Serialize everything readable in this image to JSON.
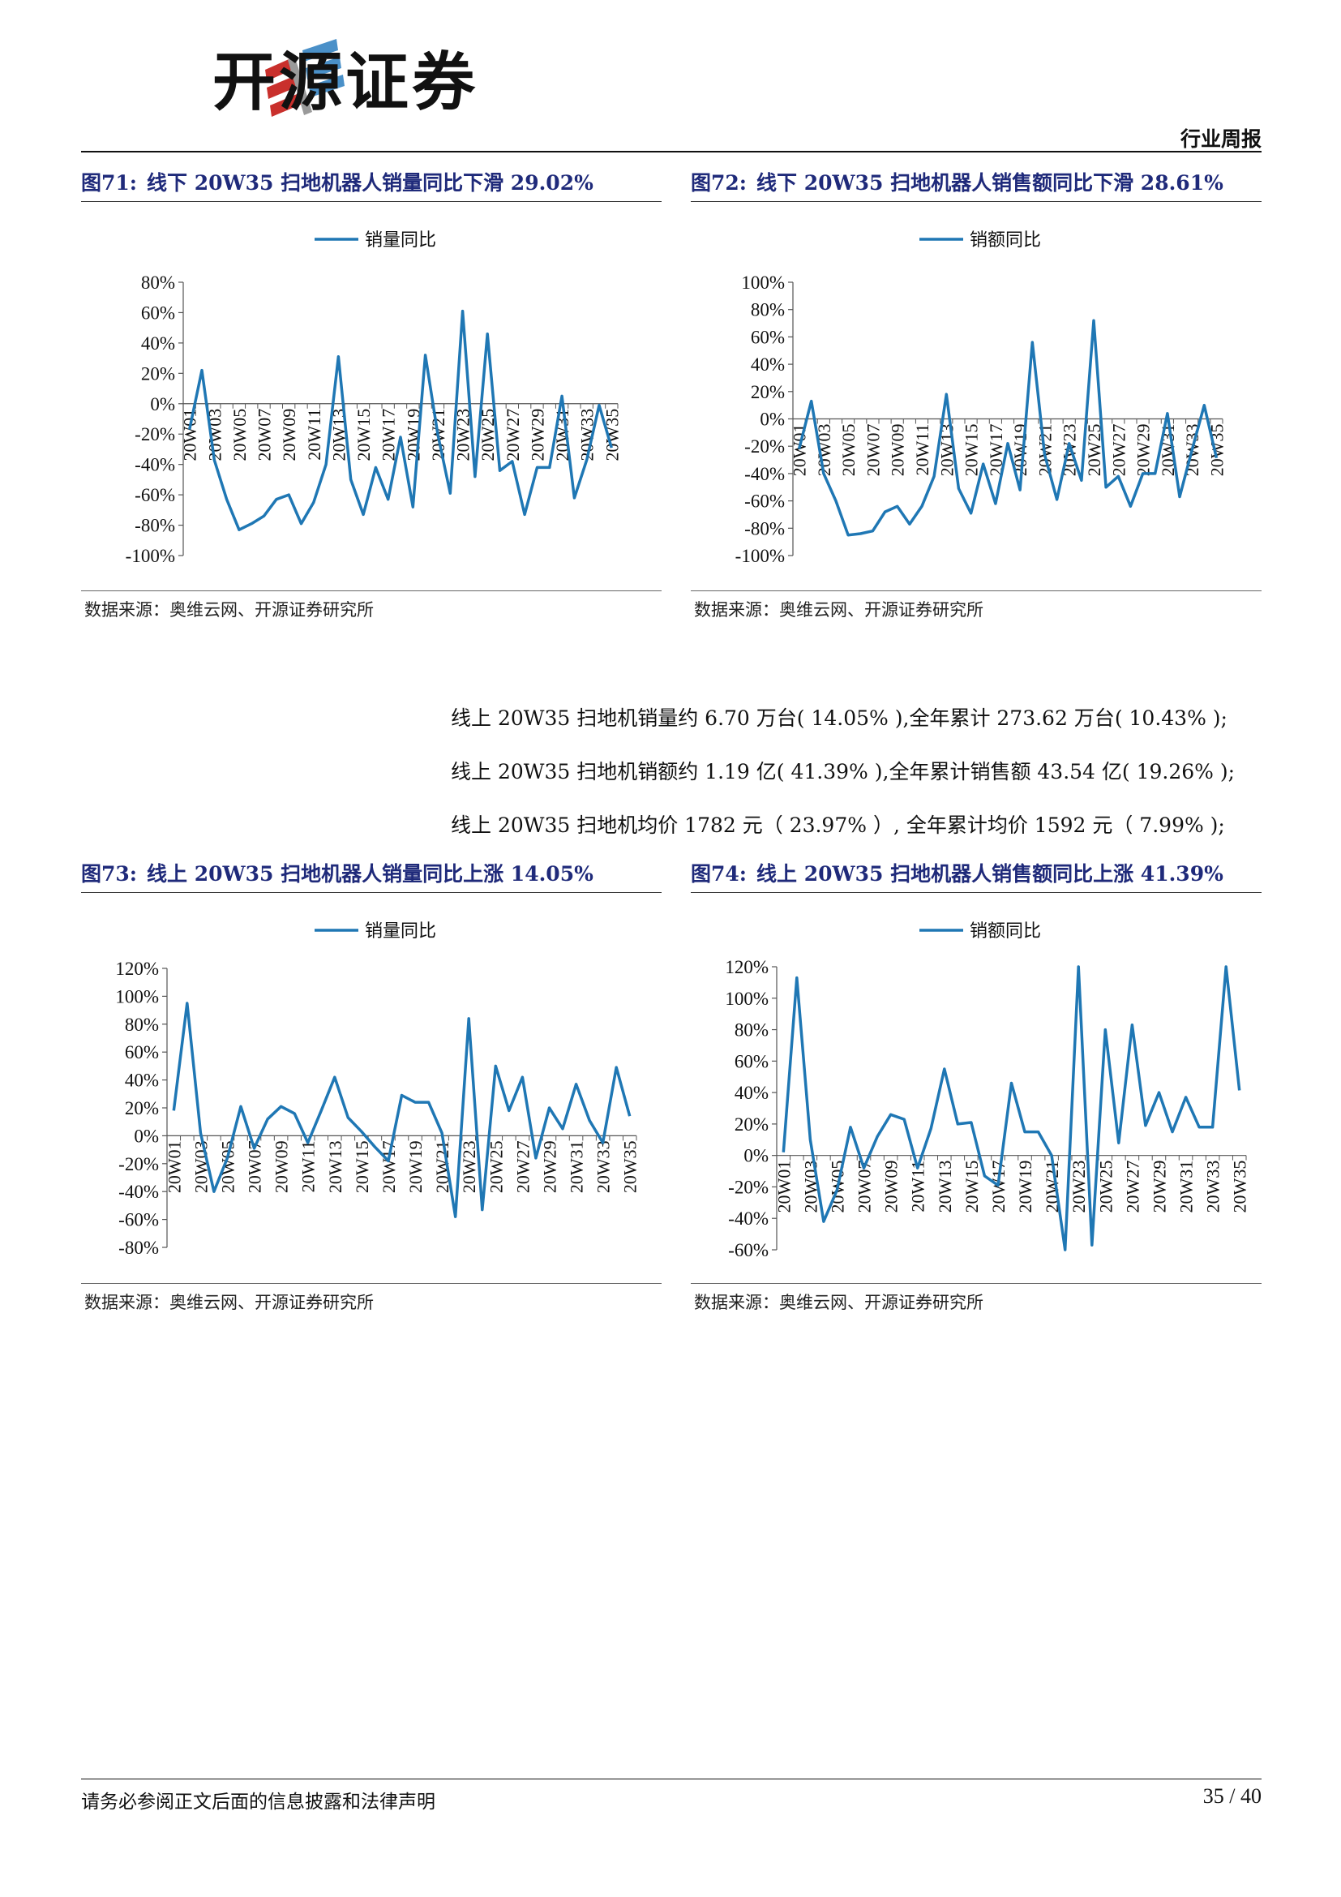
{
  "header": {
    "logo_text": "开源证券",
    "report_type": "行业周报"
  },
  "figures": [
    {
      "num": "图71:",
      "title": "线下 20W35 扫地机器人销量同比下滑 29.02%",
      "source": "数据来源：奥维云网、开源证券研究所"
    },
    {
      "num": "图72:",
      "title": "线下 20W35 扫地机器人销售额同比下滑 28.61%",
      "source": "数据来源：奥维云网、开源证券研究所"
    },
    {
      "num": "图73:",
      "title": "线上 20W35 扫地机器人销量同比上涨 14.05%",
      "source": "数据来源：奥维云网、开源证券研究所"
    },
    {
      "num": "图74:",
      "title": "线上 20W35 扫地机器人销售额同比上涨 41.39%",
      "source": "数据来源：奥维云网、开源证券研究所"
    }
  ],
  "paragraphs": [
    "线上 20W35 扫地机销量约 6.70 万台( 14.05% ),全年累计 273.62 万台( 10.43% );",
    "线上 20W35 扫地机销额约 1.19 亿( 41.39% ),全年累计销售额 43.54 亿( 19.26% );",
    "线上 20W35 扫地机均价 1782 元（ 23.97% ）, 全年累计均价 1592 元（ 7.99% );"
  ],
  "chart_data": [
    {
      "type": "line",
      "legend": "销量同比",
      "legend_position": "top-center",
      "color": "#1f77b4",
      "ylim": [
        -100,
        80
      ],
      "yticks": [
        80,
        60,
        40,
        20,
        0,
        -20,
        -40,
        -60,
        -80,
        -100
      ],
      "ytick_labels": [
        "80%",
        "60%",
        "40%",
        "20%",
        "0%",
        "-20%",
        "-40%",
        "-60%",
        "-80%",
        "-100%"
      ],
      "xtick_labels": [
        "20W01",
        "20W03",
        "20W05",
        "20W07",
        "20W09",
        "20W11",
        "20W13",
        "20W15",
        "20W17",
        "20W19",
        "20W21",
        "20W23",
        "20W25",
        "20W27",
        "20W29",
        "20W31",
        "20W33",
        "20W35"
      ],
      "values": [
        -17,
        22,
        -37,
        -63,
        -83,
        -79,
        -74,
        -63,
        -60,
        -79,
        -65,
        -40,
        31,
        -50,
        -73,
        -42,
        -63,
        -22,
        -68,
        32,
        -20,
        -59,
        61,
        -48,
        46,
        -44,
        -38,
        -73,
        -42,
        -42,
        5,
        -62,
        -37,
        -1,
        -29.02
      ]
    },
    {
      "type": "line",
      "legend": "销额同比",
      "legend_position": "top-center",
      "color": "#1f77b4",
      "ylim": [
        -100,
        100
      ],
      "yticks": [
        100,
        80,
        60,
        40,
        20,
        0,
        -20,
        -40,
        -60,
        -80,
        -100
      ],
      "ytick_labels": [
        "100%",
        "80%",
        "60%",
        "40%",
        "20%",
        "0%",
        "-20%",
        "-40%",
        "-60%",
        "-80%",
        "-100%"
      ],
      "xtick_labels": [
        "20W01",
        "20W03",
        "20W05",
        "20W07",
        "20W09",
        "20W11",
        "20W13",
        "20W15",
        "20W17",
        "20W19",
        "20W21",
        "20W23",
        "20W25",
        "20W27",
        "20W29",
        "20W31",
        "20W33",
        "20W35"
      ],
      "values": [
        -22,
        13,
        -40,
        -60,
        -85,
        -84,
        -82,
        -68,
        -64,
        -77,
        -64,
        -42,
        18,
        -51,
        -69,
        -33,
        -62,
        -18,
        -52,
        56,
        -26,
        -59,
        -18,
        -45,
        72,
        -50,
        -42,
        -64,
        -40,
        -40,
        4,
        -57,
        -23,
        10,
        -28.61
      ]
    },
    {
      "type": "line",
      "legend": "销量同比",
      "legend_position": "top-center",
      "color": "#1f77b4",
      "ylim": [
        -80,
        120
      ],
      "yticks": [
        120,
        100,
        80,
        60,
        40,
        20,
        0,
        -20,
        -40,
        -60,
        -80
      ],
      "ytick_labels": [
        "120%",
        "100%",
        "80%",
        "60%",
        "40%",
        "20%",
        "0%",
        "-20%",
        "-40%",
        "-60%",
        "-80%"
      ],
      "xtick_labels": [
        "20W01",
        "20W03",
        "20W05",
        "20W07",
        "20W09",
        "20W11",
        "20W13",
        "20W15",
        "20W17",
        "20W19",
        "20W21",
        "20W23",
        "20W25",
        "20W27",
        "20W29",
        "20W31",
        "20W33",
        "20W35"
      ],
      "values": [
        18,
        95,
        2,
        -40,
        -16,
        21,
        -9,
        12,
        21,
        16,
        -5,
        18,
        42,
        13,
        3,
        -8,
        -18,
        29,
        24,
        24,
        2,
        -58,
        84,
        -53,
        50,
        18,
        42,
        -16,
        20,
        5,
        37,
        11,
        -5,
        49,
        14.05
      ]
    },
    {
      "type": "line",
      "legend": "销额同比",
      "legend_position": "top-center",
      "color": "#1f77b4",
      "ylim": [
        -60,
        120
      ],
      "yticks": [
        120,
        100,
        80,
        60,
        40,
        20,
        0,
        -20,
        -40,
        -60
      ],
      "ytick_labels": [
        "120%",
        "100%",
        "80%",
        "60%",
        "40%",
        "20%",
        "0%",
        "-20%",
        "-40%",
        "-60%"
      ],
      "xtick_labels": [
        "20W01",
        "20W03",
        "20W05",
        "20W07",
        "20W09",
        "20W11",
        "20W13",
        "20W15",
        "20W17",
        "20W19",
        "20W21",
        "20W23",
        "20W25",
        "20W27",
        "20W29",
        "20W31",
        "20W33",
        "20W35"
      ],
      "values": [
        2,
        113,
        10,
        -42,
        -22,
        18,
        -8,
        12,
        26,
        23,
        -8,
        17,
        55,
        20,
        21,
        -13,
        -19,
        46,
        15,
        15,
        0,
        -60,
        120,
        -57,
        80,
        8,
        83,
        19,
        40,
        15,
        37,
        18,
        18,
        120,
        41.39
      ]
    }
  ],
  "footer": {
    "disclaimer": "请务必参阅正文后面的信息披露和法律声明",
    "page": "35 / 40"
  }
}
